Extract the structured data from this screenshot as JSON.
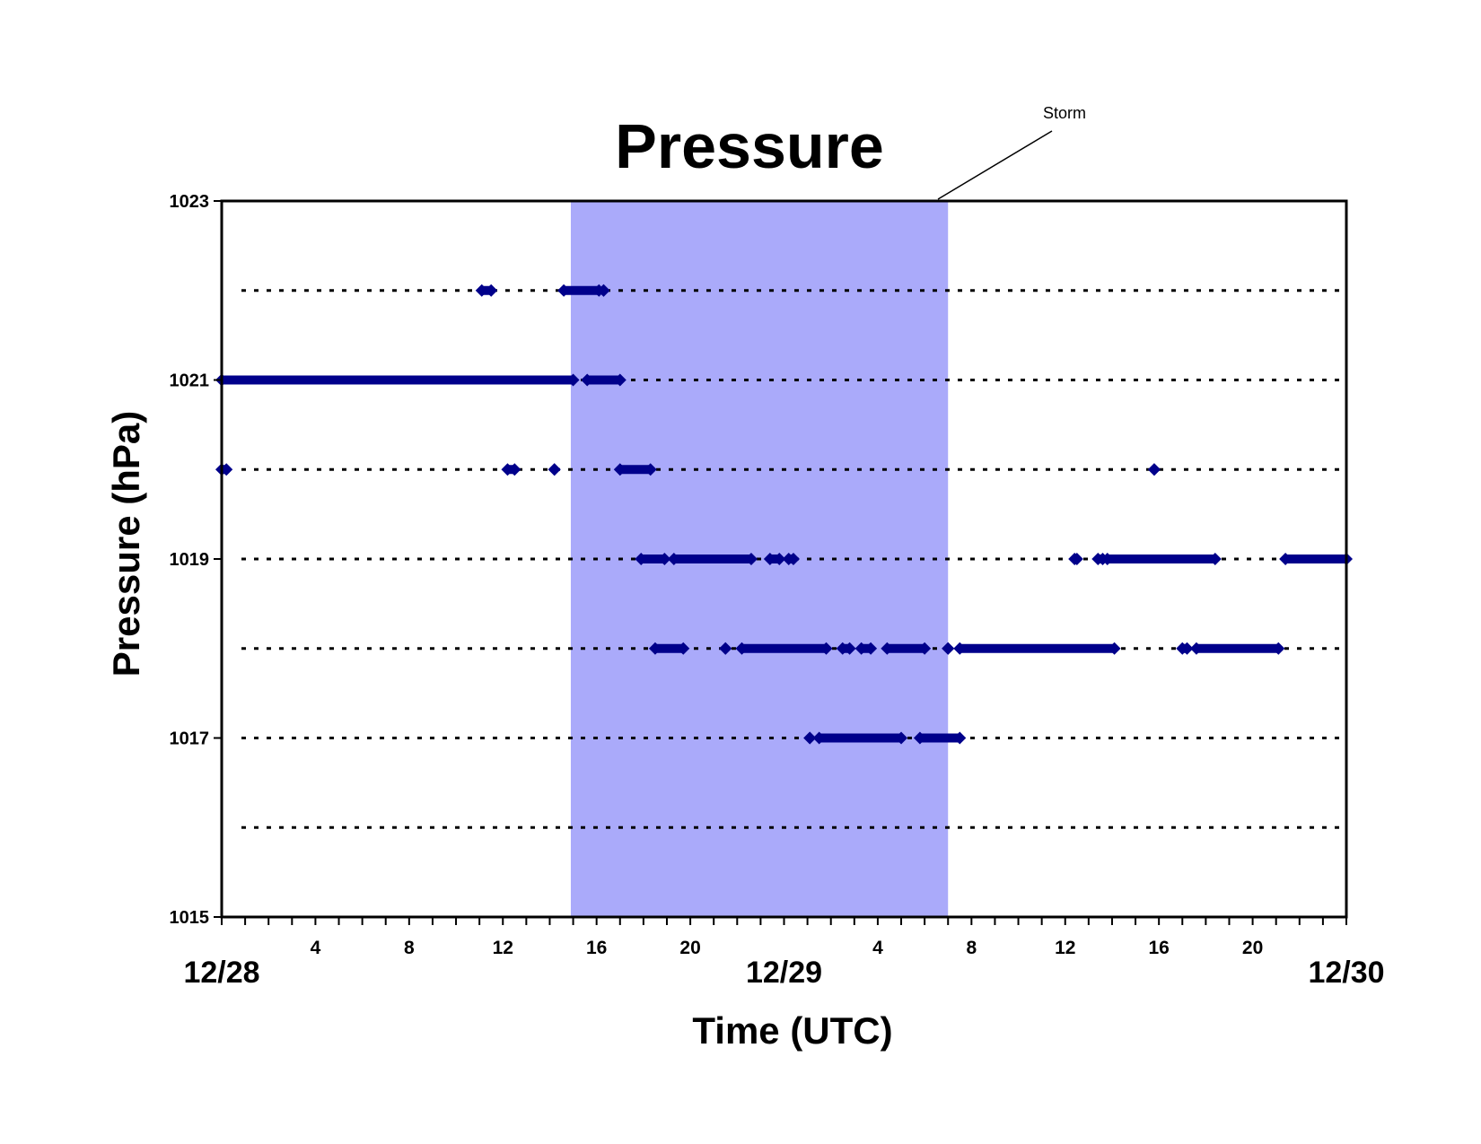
{
  "chart_data": {
    "type": "scatter",
    "title": "Pressure",
    "xlabel": "Time (UTC)",
    "ylabel": "Pressure (hPa)",
    "xlim_hours": [
      0,
      48
    ],
    "ylim": [
      1015,
      1023
    ],
    "yticks": [
      1015,
      1017,
      1019,
      1021,
      1023
    ],
    "y_gridlines": [
      1016,
      1017,
      1018,
      1019,
      1020,
      1021,
      1022
    ],
    "grid_style": "dotted horizontal",
    "xticks_minor_labels": [
      {
        "hour": 4,
        "label": "4"
      },
      {
        "hour": 8,
        "label": "8"
      },
      {
        "hour": 12,
        "label": "12"
      },
      {
        "hour": 16,
        "label": "16"
      },
      {
        "hour": 20,
        "label": "20"
      },
      {
        "hour": 28,
        "label": "4"
      },
      {
        "hour": 32,
        "label": "8"
      },
      {
        "hour": 36,
        "label": "12"
      },
      {
        "hour": 40,
        "label": "16"
      },
      {
        "hour": 44,
        "label": "20"
      }
    ],
    "xticks_date_labels": [
      {
        "hour": 0,
        "label": "12/28"
      },
      {
        "hour": 24,
        "label": "12/29"
      },
      {
        "hour": 48,
        "label": "12/30"
      }
    ],
    "annotation": {
      "text": "Storm",
      "band_hours": [
        14.9,
        31.0
      ]
    },
    "marker_color": "#00008b",
    "band_color": "#aaaafa",
    "series": [
      {
        "name": "",
        "segments": [
          {
            "y": 1022,
            "from": 11.1,
            "to": 11.5
          },
          {
            "y": 1022,
            "from": 14.6,
            "to": 16.1
          },
          {
            "y": 1022,
            "from": 16.3,
            "to": 16.3
          },
          {
            "y": 1021,
            "from": 0.0,
            "to": 15.0
          },
          {
            "y": 1021,
            "from": 15.6,
            "to": 17.0
          },
          {
            "y": 1020,
            "from": 0.0,
            "to": 0.2
          },
          {
            "y": 1020,
            "from": 12.2,
            "to": 12.5
          },
          {
            "y": 1020,
            "from": 14.2,
            "to": 14.2
          },
          {
            "y": 1020,
            "from": 17.0,
            "to": 18.3
          },
          {
            "y": 1020,
            "from": 39.8,
            "to": 39.8
          },
          {
            "y": 1019,
            "from": 17.9,
            "to": 18.9
          },
          {
            "y": 1019,
            "from": 19.3,
            "to": 22.6
          },
          {
            "y": 1019,
            "from": 23.4,
            "to": 23.8
          },
          {
            "y": 1019,
            "from": 24.2,
            "to": 24.4
          },
          {
            "y": 1019,
            "from": 36.4,
            "to": 36.5
          },
          {
            "y": 1019,
            "from": 37.4,
            "to": 37.6
          },
          {
            "y": 1019,
            "from": 37.8,
            "to": 42.4
          },
          {
            "y": 1019,
            "from": 45.4,
            "to": 48.0
          },
          {
            "y": 1018,
            "from": 18.5,
            "to": 19.7
          },
          {
            "y": 1018,
            "from": 21.5,
            "to": 21.5
          },
          {
            "y": 1018,
            "from": 22.2,
            "to": 25.8
          },
          {
            "y": 1018,
            "from": 26.5,
            "to": 26.8
          },
          {
            "y": 1018,
            "from": 27.3,
            "to": 27.7
          },
          {
            "y": 1018,
            "from": 28.4,
            "to": 30.0
          },
          {
            "y": 1018,
            "from": 31.0,
            "to": 31.0
          },
          {
            "y": 1018,
            "from": 31.5,
            "to": 38.1
          },
          {
            "y": 1018,
            "from": 41.0,
            "to": 41.2
          },
          {
            "y": 1018,
            "from": 41.6,
            "to": 45.1
          },
          {
            "y": 1017,
            "from": 25.1,
            "to": 25.1
          },
          {
            "y": 1017,
            "from": 25.5,
            "to": 29.0
          },
          {
            "y": 1017,
            "from": 29.8,
            "to": 31.5
          }
        ]
      }
    ]
  }
}
